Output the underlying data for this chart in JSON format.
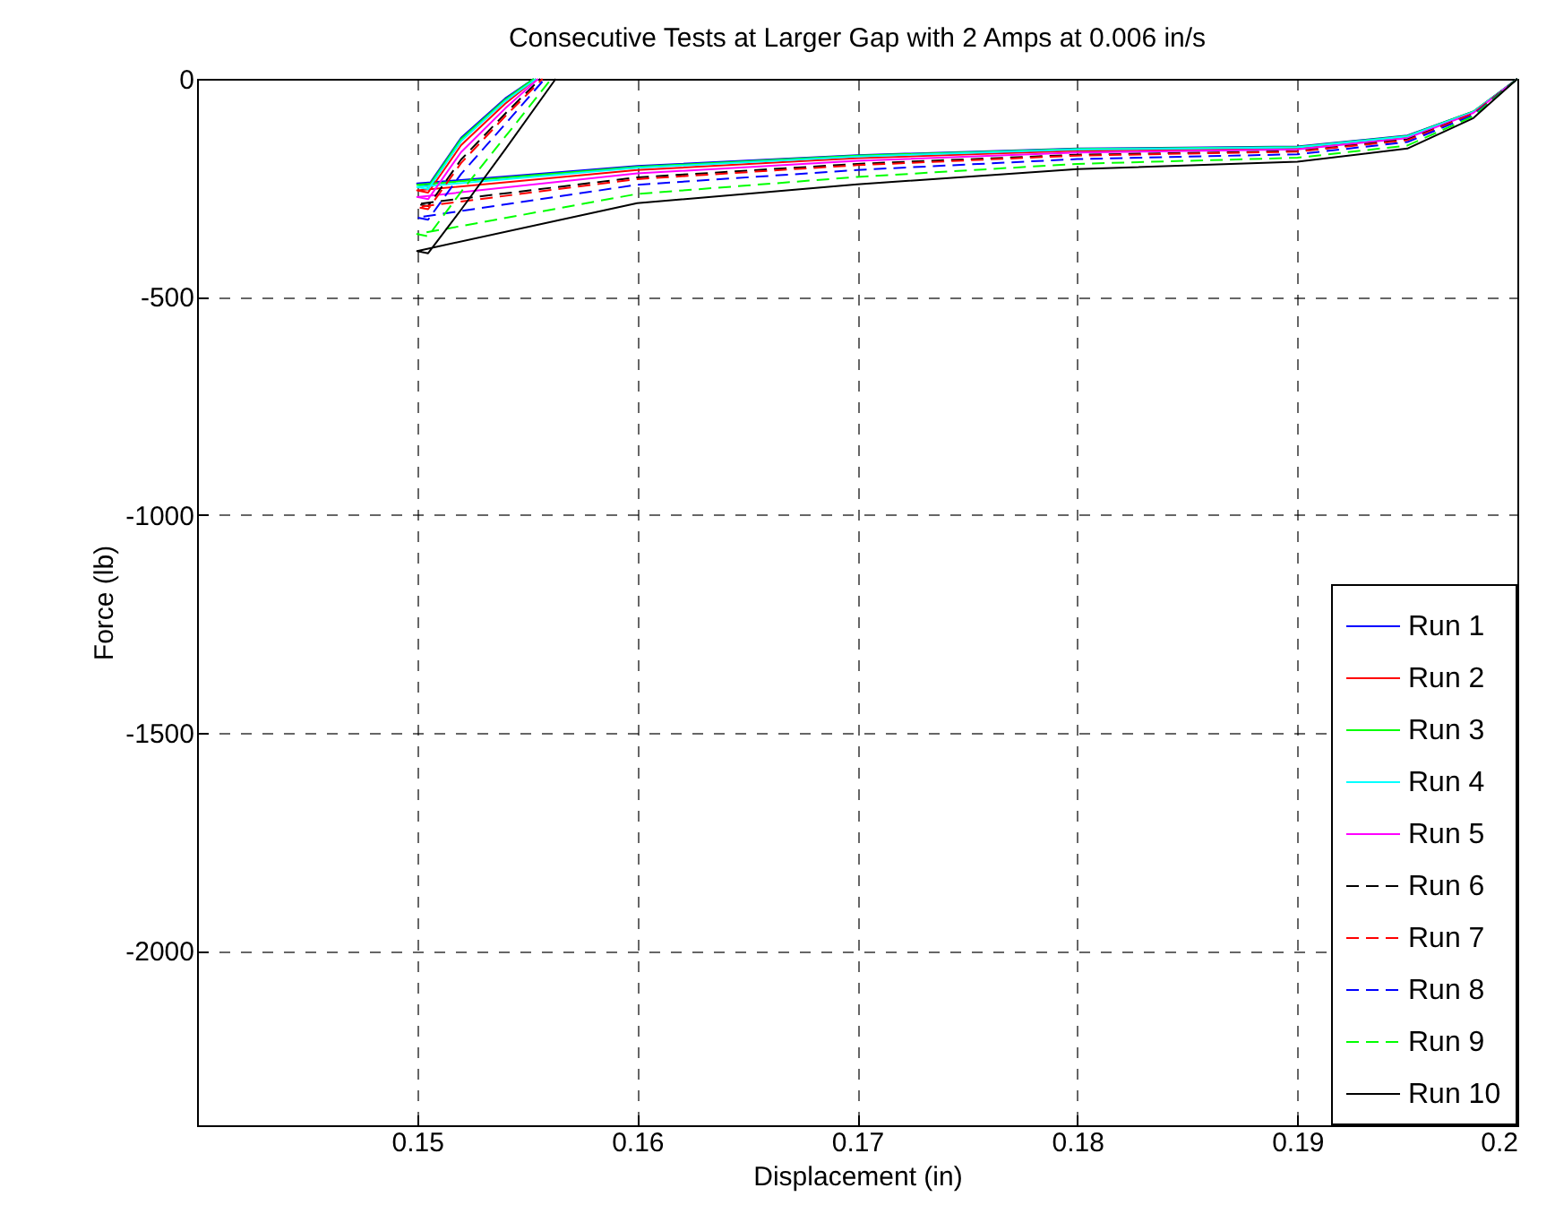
{
  "chart_data": {
    "type": "line",
    "title": "Consecutive Tests at Larger Gap with 2 Amps at 0.006 in/s",
    "xlabel": "Displacement (in)",
    "ylabel": "Force (lb)",
    "xlim": [
      0.14,
      0.2
    ],
    "xticks": [
      0.15,
      0.16,
      0.17,
      0.18,
      0.19,
      0.2
    ],
    "ylim": [
      -2400,
      0
    ],
    "yticks": [
      -2000,
      -1500,
      -1000,
      -500,
      0
    ],
    "grid": true,
    "legend": "bottom right",
    "series": [
      {
        "name": "Run 1",
        "color": "#0000ff",
        "line_style": "solid",
        "x": [
          0.2,
          0.198,
          0.195,
          0.19,
          0.18,
          0.17,
          0.16,
          0.15,
          0.1505,
          0.152,
          0.154,
          0.1553
        ],
        "values": [
          0,
          -75,
          -130,
          -155,
          -160,
          -175,
          -200,
          -240,
          -245,
          -135,
          -45,
          0
        ]
      },
      {
        "name": "Run 2",
        "color": "#ff0000",
        "line_style": "solid",
        "x": [
          0.2,
          0.198,
          0.195,
          0.19,
          0.18,
          0.17,
          0.16,
          0.15,
          0.1505,
          0.152,
          0.154,
          0.1554
        ],
        "values": [
          0,
          -77,
          -133,
          -159,
          -165,
          -182,
          -209,
          -256,
          -261,
          -152,
          -57,
          0
        ]
      },
      {
        "name": "Run 3",
        "color": "#00ff00",
        "line_style": "solid",
        "x": [
          0.2,
          0.198,
          0.195,
          0.19,
          0.18,
          0.17,
          0.16,
          0.15,
          0.1505,
          0.152,
          0.154,
          0.1553
        ],
        "values": [
          0,
          -75,
          -131,
          -156,
          -161,
          -176,
          -202,
          -243,
          -248,
          -138,
          -48,
          0
        ]
      },
      {
        "name": "Run 4",
        "color": "#00ffff",
        "line_style": "solid",
        "x": [
          0.2,
          0.198,
          0.195,
          0.19,
          0.18,
          0.17,
          0.16,
          0.15,
          0.1505,
          0.152,
          0.154,
          0.1554
        ],
        "values": [
          0,
          -76,
          -132,
          -157,
          -162,
          -178,
          -204,
          -248,
          -253,
          -143,
          -51,
          0
        ]
      },
      {
        "name": "Run 5",
        "color": "#ff00ff",
        "line_style": "solid",
        "x": [
          0.2,
          0.198,
          0.195,
          0.19,
          0.18,
          0.17,
          0.16,
          0.15,
          0.1505,
          0.152,
          0.154,
          0.1555
        ],
        "values": [
          0,
          -78,
          -136,
          -162,
          -169,
          -188,
          -217,
          -271,
          -276,
          -168,
          -68,
          0
        ]
      },
      {
        "name": "Run 6",
        "color": "#000000",
        "line_style": "dashed",
        "x": [
          0.2,
          0.198,
          0.195,
          0.19,
          0.18,
          0.17,
          0.16,
          0.15,
          0.1505,
          0.152,
          0.154,
          0.1556
        ],
        "values": [
          0,
          -80,
          -139,
          -166,
          -174,
          -195,
          -226,
          -287,
          -292,
          -185,
          -80,
          0
        ]
      },
      {
        "name": "Run 7",
        "color": "#ff0000",
        "line_style": "dashed",
        "x": [
          0.2,
          0.198,
          0.195,
          0.19,
          0.18,
          0.17,
          0.16,
          0.15,
          0.1505,
          0.152,
          0.154,
          0.1557
        ],
        "values": [
          0,
          -80,
          -141,
          -167,
          -176,
          -198,
          -230,
          -294,
          -299,
          -193,
          -86,
          0
        ]
      },
      {
        "name": "Run 8",
        "color": "#0000ff",
        "line_style": "dashed",
        "x": [
          0.2,
          0.198,
          0.195,
          0.19,
          0.18,
          0.17,
          0.16,
          0.15,
          0.1505,
          0.152,
          0.154,
          0.1558
        ],
        "values": [
          0,
          -83,
          -145,
          -173,
          -184,
          -209,
          -243,
          -318,
          -323,
          -218,
          -104,
          0
        ]
      },
      {
        "name": "Run 9",
        "color": "#00ff00",
        "line_style": "dashed",
        "x": [
          0.2,
          0.198,
          0.195,
          0.19,
          0.18,
          0.17,
          0.16,
          0.15,
          0.1505,
          0.152,
          0.154,
          0.1561
        ],
        "values": [
          0,
          -86,
          -153,
          -181,
          -195,
          -225,
          -264,
          -356,
          -361,
          -259,
          -133,
          0
        ]
      },
      {
        "name": "Run 10",
        "color": "#000000",
        "line_style": "solid",
        "x": [
          0.2,
          0.198,
          0.195,
          0.19,
          0.18,
          0.17,
          0.16,
          0.15,
          0.1505,
          0.152,
          0.154,
          0.1563
        ],
        "values": [
          0,
          -90,
          -160,
          -190,
          -207,
          -242,
          -285,
          -395,
          -400,
          -300,
          -162,
          0
        ]
      }
    ]
  }
}
